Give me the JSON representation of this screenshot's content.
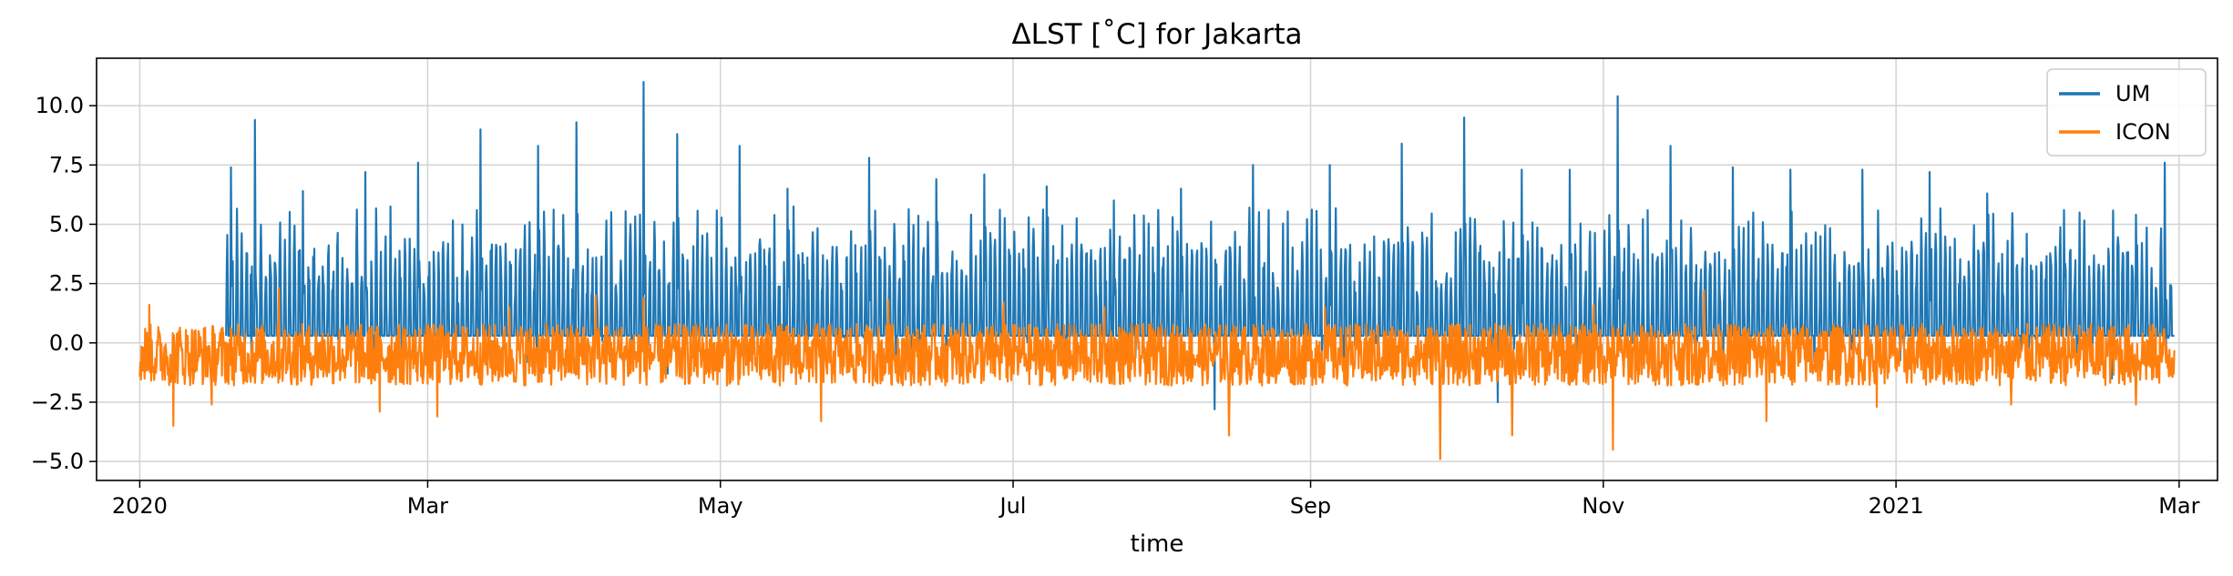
{
  "chart_data": {
    "type": "line",
    "title": "ΔLST [˚C] for Jakarta",
    "xlabel": "time",
    "ylabel": "",
    "x_range": [
      "2019-12-23",
      "2021-03-09"
    ],
    "ylim": [
      -5.8,
      12.0
    ],
    "grid": true,
    "legend_position": "top-right",
    "x_ticks": [
      {
        "date": "2020-01-01",
        "label": "2020"
      },
      {
        "date": "2020-03-01",
        "label": "Mar"
      },
      {
        "date": "2020-05-01",
        "label": "May"
      },
      {
        "date": "2020-07-01",
        "label": "Jul"
      },
      {
        "date": "2020-09-01",
        "label": "Sep"
      },
      {
        "date": "2020-11-01",
        "label": "Nov"
      },
      {
        "date": "2021-01-01",
        "label": "2021"
      },
      {
        "date": "2021-03-01",
        "label": "Mar"
      }
    ],
    "y_ticks": [
      {
        "value": -5.0,
        "label": "−5.0"
      },
      {
        "value": -2.5,
        "label": "−2.5"
      },
      {
        "value": 0.0,
        "label": "0.0"
      },
      {
        "value": 2.5,
        "label": "2.5"
      },
      {
        "value": 5.0,
        "label": "5.0"
      },
      {
        "value": 7.5,
        "label": "7.5"
      },
      {
        "value": 10.0,
        "label": "10.0"
      }
    ],
    "series": [
      {
        "name": "UM",
        "color": "#1f77b4",
        "start": "2020-01-19",
        "end": "2021-02-28",
        "points": [
          {
            "x": "2020-01-20",
            "y": 7.4
          },
          {
            "x": "2020-01-25",
            "y": 9.4
          },
          {
            "x": "2020-02-04",
            "y": 6.4
          },
          {
            "x": "2020-02-17",
            "y": 7.2
          },
          {
            "x": "2020-02-28",
            "y": 7.6
          },
          {
            "x": "2020-03-12",
            "y": 9.0
          },
          {
            "x": "2020-03-24",
            "y": 8.3
          },
          {
            "x": "2020-04-01",
            "y": 9.3
          },
          {
            "x": "2020-04-15",
            "y": 11.0
          },
          {
            "x": "2020-04-22",
            "y": 8.8
          },
          {
            "x": "2020-05-05",
            "y": 8.3
          },
          {
            "x": "2020-05-15",
            "y": 6.5
          },
          {
            "x": "2020-06-01",
            "y": 7.8
          },
          {
            "x": "2020-06-15",
            "y": 6.9
          },
          {
            "x": "2020-06-25",
            "y": 7.1
          },
          {
            "x": "2020-07-08",
            "y": 6.6
          },
          {
            "x": "2020-07-22",
            "y": 6.0
          },
          {
            "x": "2020-08-05",
            "y": 6.5
          },
          {
            "x": "2020-08-20",
            "y": 7.5
          },
          {
            "x": "2020-09-05",
            "y": 7.5
          },
          {
            "x": "2020-09-20",
            "y": 8.4
          },
          {
            "x": "2020-10-03",
            "y": 9.5
          },
          {
            "x": "2020-10-15",
            "y": 7.3
          },
          {
            "x": "2020-10-25",
            "y": 7.3
          },
          {
            "x": "2020-11-04",
            "y": 10.4
          },
          {
            "x": "2020-11-15",
            "y": 8.3
          },
          {
            "x": "2020-11-28",
            "y": 7.4
          },
          {
            "x": "2020-12-10",
            "y": 7.3
          },
          {
            "x": "2020-12-25",
            "y": 7.3
          },
          {
            "x": "2021-01-08",
            "y": 7.2
          },
          {
            "x": "2021-01-20",
            "y": 6.3
          },
          {
            "x": "2021-02-05",
            "y": 5.6
          },
          {
            "x": "2021-02-20",
            "y": 5.4
          },
          {
            "x": "2021-02-26",
            "y": 7.6
          }
        ],
        "typical_range": [
          0.3,
          4.5
        ],
        "min_values": [
          {
            "x": "2020-02-20",
            "y": -1.2
          },
          {
            "x": "2020-04-20",
            "y": -1.3
          },
          {
            "x": "2020-06-10",
            "y": -1.2
          },
          {
            "x": "2020-08-12",
            "y": -2.8
          },
          {
            "x": "2020-10-10",
            "y": -2.5
          },
          {
            "x": "2020-12-15",
            "y": -1.0
          },
          {
            "x": "2021-02-15",
            "y": -1.5
          }
        ]
      },
      {
        "name": "ICON",
        "color": "#ff7f0e",
        "start": "2020-01-01",
        "end": "2021-02-28",
        "points": [
          {
            "x": "2020-01-03",
            "y": 1.6
          },
          {
            "x": "2020-01-08",
            "y": -3.5
          },
          {
            "x": "2020-01-16",
            "y": -2.6
          },
          {
            "x": "2020-01-30",
            "y": 2.3
          },
          {
            "x": "2020-02-20",
            "y": -2.9
          },
          {
            "x": "2020-03-03",
            "y": -3.1
          },
          {
            "x": "2020-03-18",
            "y": 1.5
          },
          {
            "x": "2020-04-05",
            "y": 2.0
          },
          {
            "x": "2020-04-15",
            "y": 1.9
          },
          {
            "x": "2020-05-22",
            "y": -3.3
          },
          {
            "x": "2020-06-05",
            "y": 1.8
          },
          {
            "x": "2020-06-29",
            "y": 1.7
          },
          {
            "x": "2020-07-20",
            "y": 1.5
          },
          {
            "x": "2020-08-15",
            "y": -3.9
          },
          {
            "x": "2020-09-04",
            "y": 1.5
          },
          {
            "x": "2020-09-28",
            "y": -4.9
          },
          {
            "x": "2020-10-13",
            "y": -3.9
          },
          {
            "x": "2020-10-30",
            "y": 1.6
          },
          {
            "x": "2020-11-03",
            "y": -4.5
          },
          {
            "x": "2020-11-22",
            "y": 2.2
          },
          {
            "x": "2020-12-05",
            "y": -3.3
          },
          {
            "x": "2020-12-28",
            "y": -2.7
          },
          {
            "x": "2021-01-25",
            "y": -2.6
          },
          {
            "x": "2021-02-20",
            "y": -2.6
          }
        ],
        "typical_range": [
          -1.8,
          0.8
        ]
      }
    ]
  }
}
